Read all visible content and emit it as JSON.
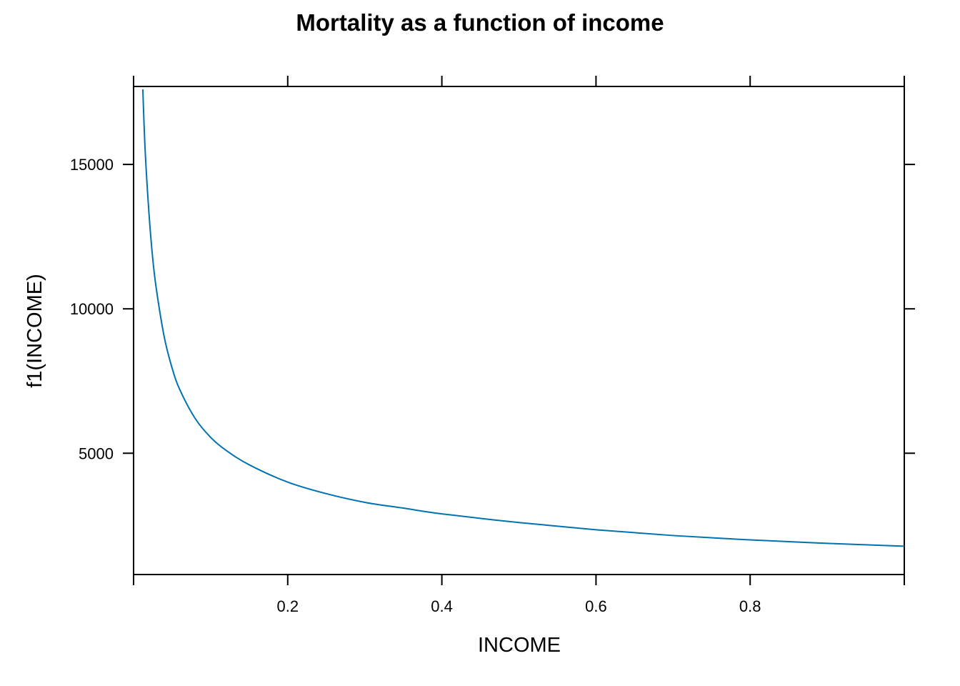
{
  "chart_data": {
    "type": "line",
    "title": "Mortality as a function of income",
    "xlabel": "INCOME",
    "ylabel": "f1(INCOME)",
    "xlim": [
      0.0,
      1.0
    ],
    "ylim": [
      800,
      17700
    ],
    "x_ticks": [
      0.2,
      0.4,
      0.6,
      0.8
    ],
    "x_tick_labels": [
      "0.2",
      "0.4",
      "0.6",
      "0.8"
    ],
    "y_ticks": [
      5000,
      10000,
      15000
    ],
    "y_tick_labels": [
      "5000",
      "10000",
      "15000"
    ],
    "grid": false,
    "series": [
      {
        "color": "#0072B2",
        "x": [
          0.012,
          0.015,
          0.02,
          0.025,
          0.03,
          0.04,
          0.05,
          0.06,
          0.08,
          0.1,
          0.12,
          0.15,
          0.2,
          0.25,
          0.3,
          0.35,
          0.4,
          0.5,
          0.6,
          0.7,
          0.8,
          0.9,
          1.0
        ],
        "y": [
          17600,
          15500,
          13300,
          11700,
          10600,
          9000,
          7950,
          7200,
          6200,
          5550,
          5100,
          4600,
          4000,
          3600,
          3300,
          3100,
          2900,
          2600,
          2350,
          2150,
          2000,
          1880,
          1780
        ]
      }
    ]
  }
}
